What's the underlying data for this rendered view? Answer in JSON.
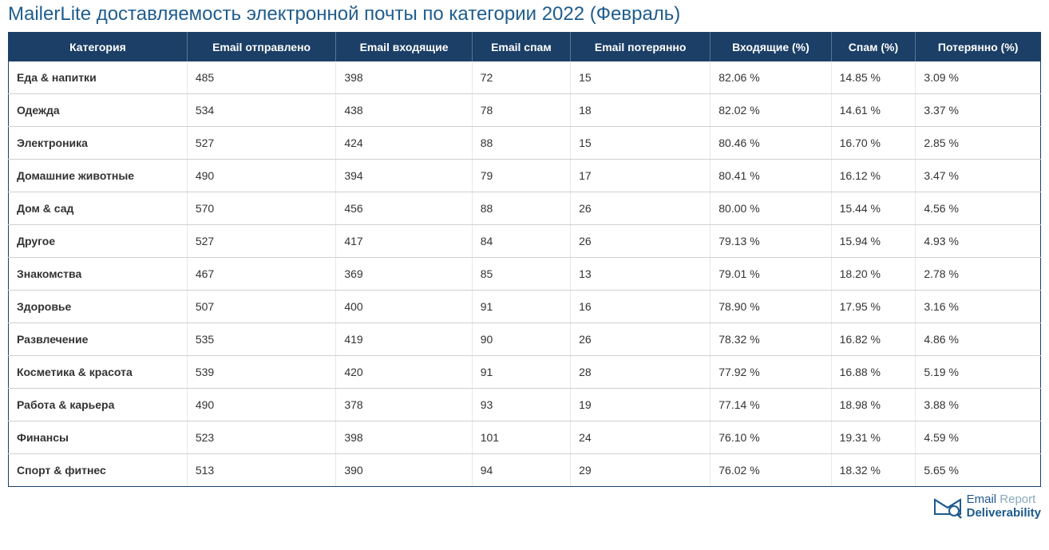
{
  "title": "MailerLite доставляемость электронной почты по категории 2022 (Февраль)",
  "table": {
    "columns": [
      "Категория",
      "Email отправлено",
      "Email входящие",
      "Email спам",
      "Email потерянно",
      "Входящие (%)",
      "Спам (%)",
      "Потерянно (%)"
    ],
    "rows": [
      [
        "Еда & напитки",
        "485",
        "398",
        "72",
        "15",
        "82.06 %",
        "14.85 %",
        "3.09 %"
      ],
      [
        "Одежда",
        "534",
        "438",
        "78",
        "18",
        "82.02 %",
        "14.61 %",
        "3.37 %"
      ],
      [
        "Электроника",
        "527",
        "424",
        "88",
        "15",
        "80.46 %",
        "16.70 %",
        "2.85 %"
      ],
      [
        "Домашние животные",
        "490",
        "394",
        "79",
        "17",
        "80.41 %",
        "16.12 %",
        "3.47 %"
      ],
      [
        "Дом & сад",
        "570",
        "456",
        "88",
        "26",
        "80.00 %",
        "15.44 %",
        "4.56 %"
      ],
      [
        "Другое",
        "527",
        "417",
        "84",
        "26",
        "79.13 %",
        "15.94 %",
        "4.93 %"
      ],
      [
        "Знакомства",
        "467",
        "369",
        "85",
        "13",
        "79.01 %",
        "18.20 %",
        "2.78 %"
      ],
      [
        "Здоровье",
        "507",
        "400",
        "91",
        "16",
        "78.90 %",
        "17.95 %",
        "3.16 %"
      ],
      [
        "Развлечение",
        "535",
        "419",
        "90",
        "26",
        "78.32 %",
        "16.82 %",
        "4.86 %"
      ],
      [
        "Косметика & красота",
        "539",
        "420",
        "91",
        "28",
        "77.92 %",
        "16.88 %",
        "5.19 %"
      ],
      [
        "Работа & карьера",
        "490",
        "378",
        "93",
        "19",
        "77.14 %",
        "18.98 %",
        "3.88 %"
      ],
      [
        "Финансы",
        "523",
        "398",
        "101",
        "24",
        "76.10 %",
        "19.31 %",
        "4.59 %"
      ],
      [
        "Спорт & фитнес",
        "513",
        "390",
        "94",
        "29",
        "76.02 %",
        "18.32 %",
        "5.65 %"
      ]
    ],
    "header_bg": "#1b3f66",
    "header_text_color": "#ffffff",
    "row_border_color": "#d0d0d0",
    "title_color": "#1f5d8e"
  },
  "logo": {
    "line1_email": "Email",
    "line1_report": " Report",
    "line2": "Deliverability",
    "icon_color": "#1b5a8e"
  }
}
